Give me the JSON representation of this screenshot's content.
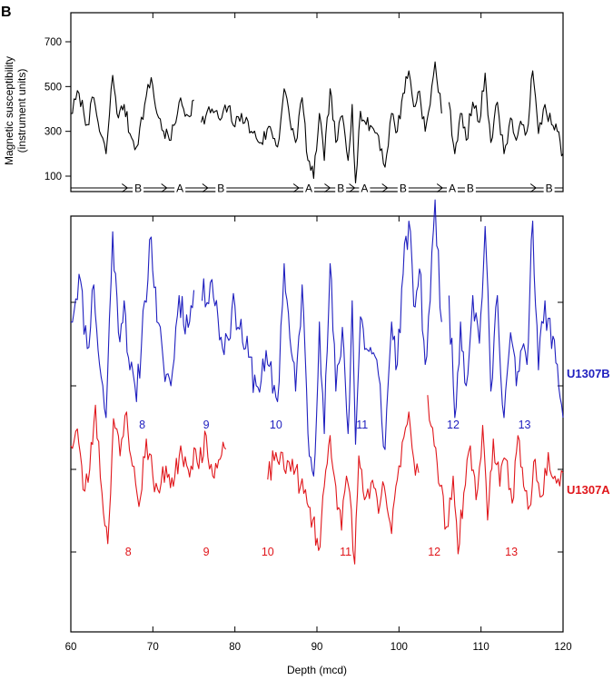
{
  "chart_data": {
    "type": "line",
    "panel_label": "B",
    "xlabel": "Depth (mcd)",
    "xlim": [
      60,
      120
    ],
    "xticks": [
      "60",
      "70",
      "80",
      "90",
      "100",
      "110",
      "120"
    ],
    "colors": {
      "black": "#000000",
      "blue": "#1f1fbf",
      "red": "#e0161b"
    },
    "top_panel": {
      "ylabel_line1": "Magnetic susceptibility",
      "ylabel_line2": "(instrument units)",
      "ylim": [
        50,
        780
      ],
      "yticks": [
        "100",
        "300",
        "500",
        "700"
      ],
      "splice_sequence": [
        "B",
        "A",
        "B",
        "A",
        "B",
        "A",
        "B",
        "A",
        "B",
        "B"
      ],
      "splice_label_depths": [
        68.2,
        73.3,
        78.3,
        89.0,
        92.9,
        95.8,
        100.5,
        106.5,
        108.7,
        118.3
      ],
      "splice_tie_depths": [
        66.9,
        71.7,
        76.7,
        87.8,
        91.6,
        94.6,
        98.6,
        105.3,
        107.2,
        116.7
      ],
      "series": {
        "name": "Spliced record",
        "keypoints": [
          [
            60,
            380
          ],
          [
            61.0,
            470
          ],
          [
            62.0,
            330
          ],
          [
            62.8,
            450
          ],
          [
            63.5,
            300
          ],
          [
            64.3,
            200
          ],
          [
            65.1,
            550
          ],
          [
            65.8,
            360
          ],
          [
            66.5,
            420
          ],
          [
            67.2,
            290
          ],
          [
            68.0,
            230
          ],
          [
            69.0,
            420
          ],
          [
            69.8,
            540
          ],
          [
            70.5,
            380
          ],
          [
            71.3,
            300
          ],
          [
            72.2,
            260
          ],
          [
            73.2,
            430
          ],
          [
            74.3,
            370
          ],
          [
            75.0,
            440
          ],
          [
            75.5,
            null
          ],
          [
            75.9,
            340
          ],
          [
            77.2,
            400
          ],
          [
            78.2,
            350
          ],
          [
            79.2,
            410
          ],
          [
            80.0,
            320
          ],
          [
            80.8,
            380
          ],
          [
            82.0,
            300
          ],
          [
            83.2,
            250
          ],
          [
            84.3,
            320
          ],
          [
            85.2,
            230
          ],
          [
            86.0,
            490
          ],
          [
            86.7,
            350
          ],
          [
            87.4,
            250
          ],
          [
            88.2,
            450
          ],
          [
            88.9,
            170
          ],
          [
            89.6,
            90
          ],
          [
            90.3,
            380
          ],
          [
            90.9,
            170
          ],
          [
            91.6,
            490
          ],
          [
            92.3,
            250
          ],
          [
            93.1,
            370
          ],
          [
            93.8,
            170
          ],
          [
            94.3,
            420
          ],
          [
            94.7,
            70
          ],
          [
            95.3,
            390
          ],
          [
            96.0,
            330
          ],
          [
            96.7,
            320
          ],
          [
            97.5,
            280
          ],
          [
            98.3,
            140
          ],
          [
            99.1,
            380
          ],
          [
            99.8,
            300
          ],
          [
            100.5,
            470
          ],
          [
            101.2,
            570
          ],
          [
            101.8,
            410
          ],
          [
            102.5,
            480
          ],
          [
            103.2,
            300
          ],
          [
            103.8,
            420
          ],
          [
            104.4,
            610
          ],
          [
            105.2,
            380
          ],
          [
            105.6,
            null
          ],
          [
            106.1,
            430
          ],
          [
            106.8,
            200
          ],
          [
            107.5,
            380
          ],
          [
            108.2,
            260
          ],
          [
            109.0,
            430
          ],
          [
            109.8,
            340
          ],
          [
            110.5,
            560
          ],
          [
            111.2,
            250
          ],
          [
            112.0,
            430
          ],
          [
            112.8,
            200
          ],
          [
            113.6,
            360
          ],
          [
            114.3,
            260
          ],
          [
            115.0,
            330
          ],
          [
            115.6,
            300
          ],
          [
            116.3,
            570
          ],
          [
            117.0,
            290
          ],
          [
            117.8,
            420
          ],
          [
            118.6,
            330
          ],
          [
            119.3,
            300
          ],
          [
            120.0,
            200
          ]
        ]
      }
    },
    "bottom_panel": {
      "series": [
        {
          "name": "U1307B",
          "color": "#1f1fbf",
          "core_labels": [
            {
              "text": "8",
              "depth": 68.7
            },
            {
              "text": "9",
              "depth": 76.5
            },
            {
              "text": "10",
              "depth": 85.0
            },
            {
              "text": "11",
              "depth": 95.5
            },
            {
              "text": "12",
              "depth": 106.6
            },
            {
              "text": "13",
              "depth": 115.3
            }
          ],
          "keypoints": [
            [
              60,
              380
            ],
            [
              61.0,
              470
            ],
            [
              62.0,
              330
            ],
            [
              62.8,
              450
            ],
            [
              63.5,
              300
            ],
            [
              64.3,
              200
            ],
            [
              65.1,
              550
            ],
            [
              65.8,
              360
            ],
            [
              66.5,
              420
            ],
            [
              67.2,
              290
            ],
            [
              68.0,
              230
            ],
            [
              69.0,
              420
            ],
            [
              69.8,
              540
            ],
            [
              70.5,
              380
            ],
            [
              71.3,
              300
            ],
            [
              72.2,
              260
            ],
            [
              73.2,
              430
            ],
            [
              74.3,
              370
            ],
            [
              75.0,
              440
            ],
            [
              75.5,
              null
            ],
            [
              76.0,
              420
            ],
            [
              77.2,
              460
            ],
            [
              78.5,
              330
            ],
            [
              80.0,
              410
            ],
            [
              81.3,
              330
            ],
            [
              82.6,
              260
            ],
            [
              84.0,
              300
            ],
            [
              85.2,
              230
            ],
            [
              86.0,
              490
            ],
            [
              86.7,
              350
            ],
            [
              87.4,
              250
            ],
            [
              88.2,
              450
            ],
            [
              88.9,
              170
            ],
            [
              89.6,
              90
            ],
            [
              90.3,
              380
            ],
            [
              90.9,
              170
            ],
            [
              91.6,
              490
            ],
            [
              92.3,
              250
            ],
            [
              93.1,
              370
            ],
            [
              93.8,
              170
            ],
            [
              94.3,
              420
            ],
            [
              94.7,
              150
            ],
            [
              95.3,
              390
            ],
            [
              96.0,
              330
            ],
            [
              96.7,
              320
            ],
            [
              97.5,
              280
            ],
            [
              98.3,
              140
            ],
            [
              99.1,
              380
            ],
            [
              99.8,
              300
            ],
            [
              100.5,
              470
            ],
            [
              101.2,
              570
            ],
            [
              101.8,
              410
            ],
            [
              102.5,
              480
            ],
            [
              103.2,
              300
            ],
            [
              103.8,
              420
            ],
            [
              104.4,
              610
            ],
            [
              105.2,
              380
            ],
            [
              105.6,
              null
            ],
            [
              106.1,
              430
            ],
            [
              106.8,
              200
            ],
            [
              107.5,
              380
            ],
            [
              108.2,
              260
            ],
            [
              109.0,
              430
            ],
            [
              109.8,
              340
            ],
            [
              110.5,
              560
            ],
            [
              111.2,
              250
            ],
            [
              112.0,
              430
            ],
            [
              112.8,
              200
            ],
            [
              113.6,
              360
            ],
            [
              114.3,
              260
            ],
            [
              115.0,
              330
            ],
            [
              115.6,
              300
            ],
            [
              116.3,
              570
            ],
            [
              117.0,
              290
            ],
            [
              117.8,
              420
            ],
            [
              118.6,
              330
            ],
            [
              119.3,
              300
            ],
            [
              120.0,
              200
            ]
          ]
        },
        {
          "name": "U1307A",
          "color": "#e0161b",
          "core_labels": [
            {
              "text": "8",
              "depth": 67.0
            },
            {
              "text": "9",
              "depth": 76.5
            },
            {
              "text": "10",
              "depth": 84.0
            },
            {
              "text": "11",
              "depth": 93.5
            },
            {
              "text": "12",
              "depth": 104.3
            },
            {
              "text": "13",
              "depth": 113.7
            }
          ],
          "keypoints": [
            [
              60,
              420
            ],
            [
              60.8,
              470
            ],
            [
              61.5,
              290
            ],
            [
              62.3,
              350
            ],
            [
              63.0,
              540
            ],
            [
              63.8,
              280
            ],
            [
              64.5,
              130
            ],
            [
              65.2,
              500
            ],
            [
              66.0,
              390
            ],
            [
              66.8,
              520
            ],
            [
              67.5,
              360
            ],
            [
              68.3,
              240
            ],
            [
              69.2,
              440
            ],
            [
              70.0,
              330
            ],
            [
              70.8,
              280
            ],
            [
              71.6,
              360
            ],
            [
              72.5,
              300
            ],
            [
              73.4,
              420
            ],
            [
              74.3,
              350
            ],
            [
              75.2,
              410
            ],
            [
              76.0,
              370
            ],
            [
              76.5,
              450
            ],
            [
              77.3,
              330
            ],
            [
              78.2,
              380
            ],
            [
              78.9,
              410
            ],
            [
              79.3,
              null
            ],
            [
              84.0,
              320
            ],
            [
              85.0,
              400
            ],
            [
              86.0,
              350
            ],
            [
              87.0,
              380
            ],
            [
              88.0,
              300
            ],
            [
              88.8,
              250
            ],
            [
              89.5,
              200
            ],
            [
              90.2,
              110
            ],
            [
              90.9,
              300
            ],
            [
              91.6,
              450
            ],
            [
              92.3,
              300
            ],
            [
              93.0,
              170
            ],
            [
              93.6,
              330
            ],
            [
              94.2,
              230
            ],
            [
              94.6,
              70
            ],
            [
              95.1,
              390
            ],
            [
              95.8,
              260
            ],
            [
              96.6,
              310
            ],
            [
              97.5,
              220
            ],
            [
              98.2,
              300
            ],
            [
              99.1,
              160
            ],
            [
              99.8,
              320
            ],
            [
              100.4,
              430
            ],
            [
              101.2,
              520
            ],
            [
              101.8,
              380
            ],
            [
              102.4,
              340
            ],
            [
              102.8,
              null
            ],
            [
              103.5,
              570
            ],
            [
              104.3,
              420
            ],
            [
              105.0,
              300
            ],
            [
              105.8,
              180
            ],
            [
              106.6,
              330
            ],
            [
              107.2,
              100
            ],
            [
              107.9,
              280
            ],
            [
              108.7,
              420
            ],
            [
              109.4,
              260
            ],
            [
              110.2,
              480
            ],
            [
              110.8,
              200
            ],
            [
              111.5,
              440
            ],
            [
              112.3,
              300
            ],
            [
              113.0,
              380
            ],
            [
              113.8,
              250
            ],
            [
              114.5,
              450
            ],
            [
              115.2,
              300
            ],
            [
              115.9,
              240
            ],
            [
              116.6,
              380
            ],
            [
              117.4,
              270
            ],
            [
              118.2,
              400
            ],
            [
              119.0,
              330
            ],
            [
              120.0,
              340
            ]
          ]
        }
      ]
    }
  }
}
